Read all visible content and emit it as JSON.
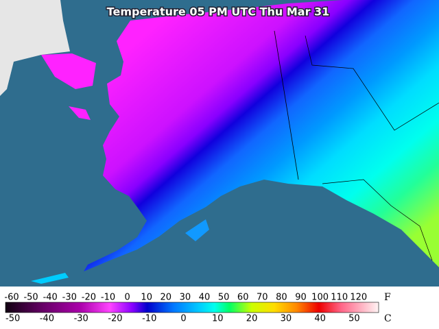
{
  "header": {
    "title": "Temperature 05 PM UTC Thu Mar 31"
  },
  "legend": {
    "f_labels": [
      -60,
      -50,
      -40,
      -30,
      -20,
      -10,
      0,
      10,
      20,
      30,
      40,
      50,
      60,
      70,
      80,
      90,
      100,
      110,
      120
    ],
    "f_unit": "F",
    "c_labels": [
      -50,
      -40,
      -30,
      -20,
      -10,
      0,
      10,
      20,
      30,
      40,
      50
    ],
    "c_unit": "C"
  }
}
